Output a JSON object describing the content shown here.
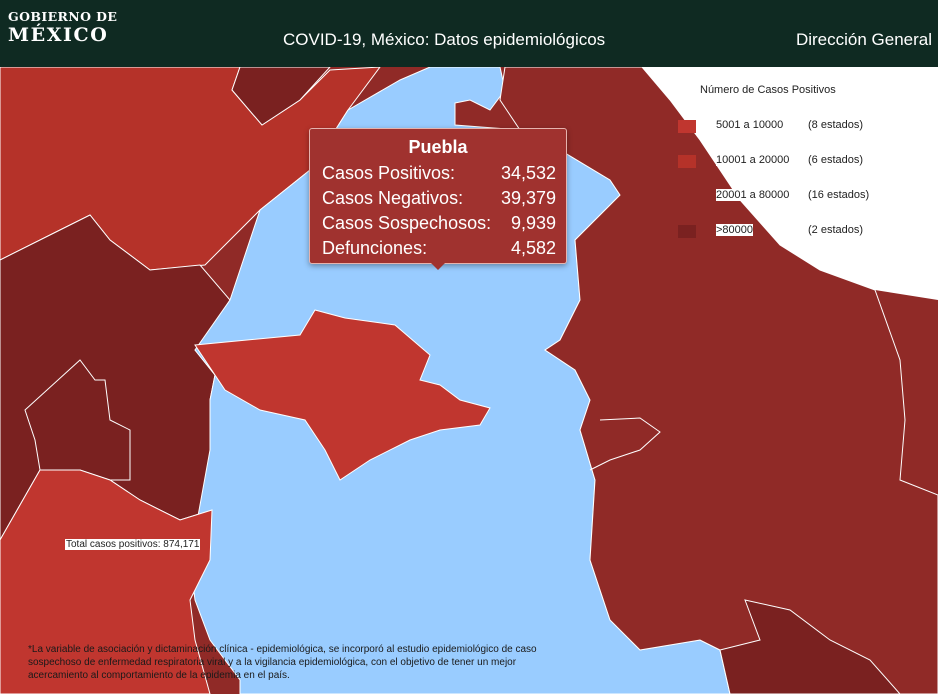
{
  "header": {
    "logo_line1": "GOBIERNO DE",
    "logo_line2": "MÉXICO",
    "title": "COVID-19, México: Datos epidemiológicos",
    "right_link": "Dirección General"
  },
  "colors": {
    "header_bg": "#0f2a22",
    "range_5001_10000": "#c0362f",
    "range_10001_20000": "#b53229",
    "range_20001_80000": "#902a27",
    "range_over_80000": "#7a2120",
    "selected_state": "#99ccff"
  },
  "legend": {
    "title": "Número de Casos Positivos",
    "items": [
      {
        "range": "5001 a  10000",
        "count": "(8 estados)",
        "color": "#c0362f"
      },
      {
        "range": "10001 a  20000",
        "count": "(6 estados)",
        "color": "#b53229"
      },
      {
        "range": "20001 a  80000",
        "count": "(16 estados)",
        "color": "#902a27"
      },
      {
        "range": ">80000",
        "count": "(2 estados)",
        "color": "#7a2120"
      }
    ]
  },
  "tooltip": {
    "state": "Puebla",
    "rows": [
      {
        "label": "Casos Positivos:",
        "value": "34,532"
      },
      {
        "label": "Casos Negativos:",
        "value": "39,379"
      },
      {
        "label": "Casos Sospechosos:",
        "value": "9,939"
      },
      {
        "label": "Defunciones:",
        "value": "4,582"
      }
    ]
  },
  "total_text": "Total casos positivos: 874,171",
  "footnote": "*La variable de asociación y dictaminación clínica - epidemiológica, se incorporó al estudio epidemiológico de caso sospechoso de enfermedad respiratoria viral y a la vigilancia epidemiológica, con el objetivo de tener un mejor acercamiento al comportamiento de la epidemia en el país."
}
